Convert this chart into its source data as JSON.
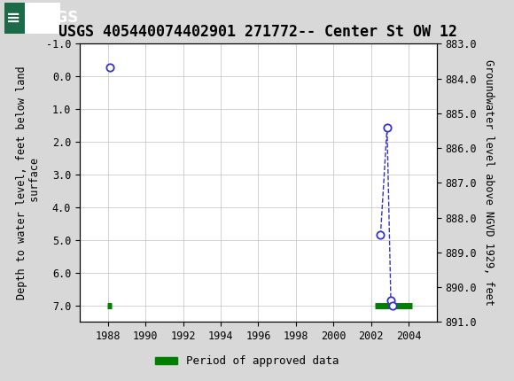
{
  "title": "USGS 405440074402901 271772-- Center St OW 12",
  "ylabel_left": "Depth to water level, feet below land\n surface",
  "ylabel_right": "Groundwater level above NGVD 1929, feet",
  "ylim_left": [
    -1.0,
    7.5
  ],
  "ylim_right_top": 891.0,
  "ylim_right_bottom": 883.0,
  "yticks_left": [
    -1.0,
    0.0,
    1.0,
    2.0,
    3.0,
    4.0,
    5.0,
    6.0,
    7.0
  ],
  "yticks_right": [
    891.0,
    890.0,
    889.0,
    888.0,
    887.0,
    886.0,
    885.0,
    884.0,
    883.0
  ],
  "xlim": [
    1986.5,
    2005.5
  ],
  "xticks": [
    1988,
    1990,
    1992,
    1994,
    1996,
    1998,
    2000,
    2002,
    2004
  ],
  "bg_color": "#d8d8d8",
  "plot_bg_color": "#ffffff",
  "header_color": "#1b6b48",
  "blue_points_x": [
    1988.1,
    2002.5,
    2002.85,
    2003.05,
    2003.15
  ],
  "blue_points_y": [
    -0.28,
    4.85,
    1.55,
    6.85,
    7.0
  ],
  "blue_line_x": [
    2002.5,
    2002.85,
    2003.05,
    2003.15
  ],
  "blue_line_y": [
    4.85,
    1.55,
    6.85,
    7.0
  ],
  "green_bar1_x_start": 1987.95,
  "green_bar1_x_end": 1988.2,
  "green_bar1_y": 7.0,
  "green_bar2_x_start": 2002.2,
  "green_bar2_x_end": 2004.2,
  "green_bar2_y": 7.0,
  "legend_label": "Period of approved data",
  "legend_color": "#008000",
  "point_color": "#3333cc",
  "grid_color": "#c0c0c0",
  "title_fontsize": 12,
  "axis_label_fontsize": 8.5,
  "tick_fontsize": 8.5
}
